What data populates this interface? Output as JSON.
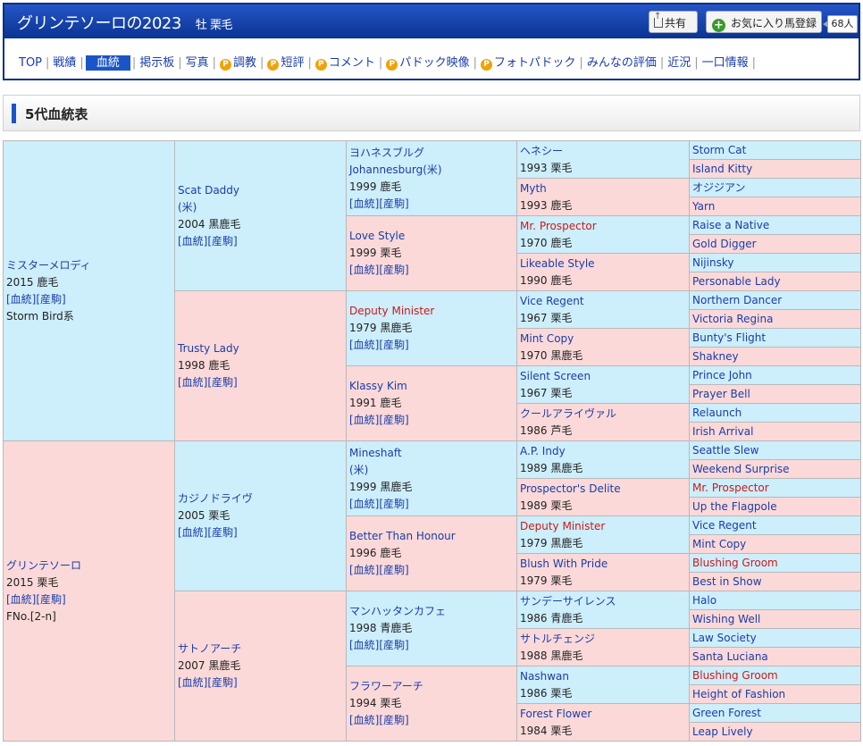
{
  "header": {
    "title": "グリンテソーロの2023",
    "subtitle": "牡 栗毛",
    "share_label": "共有",
    "fav_label": "お気に入り馬登録",
    "fav_count": "68人"
  },
  "nav": {
    "items": [
      "TOP",
      "戦績",
      "血統",
      "掲示板",
      "写真",
      "調教",
      "短評",
      "コメント",
      "パドック映像",
      "フォトパドック",
      "みんなの評価",
      "近況",
      "一口情報"
    ],
    "p_badge": "P"
  },
  "section_title": "5代血統表",
  "links": "[血統][産駒]",
  "sire": {
    "name": "ミスターメロディ",
    "info": "2015 鹿毛",
    "line": "Storm Bird系"
  },
  "dam": {
    "name": "グリンテソーロ",
    "info": "2015 栗毛",
    "line": "FNo.[2-n]"
  },
  "gen2": [
    {
      "name": "Scat Daddy",
      "name2": "(米)",
      "info": "2004 黒鹿毛"
    },
    {
      "name": "Trusty Lady",
      "info": "1998 鹿毛"
    },
    {
      "name": "カジノドライヴ",
      "info": "2005 栗毛"
    },
    {
      "name": "サトノアーチ",
      "info": "2007 黒鹿毛"
    }
  ],
  "gen3": [
    {
      "name": "ヨハネスブルグ",
      "name2": "Johannesburg(米)",
      "info": "1999 鹿毛"
    },
    {
      "name": "Love Style",
      "info": "1999 栗毛"
    },
    {
      "name": "Deputy Minister",
      "info": "1979 黒鹿毛"
    },
    {
      "name": "Klassy Kim",
      "info": "1991 鹿毛"
    },
    {
      "name": "Mineshaft",
      "name2": "(米)",
      "info": "1999 黒鹿毛"
    },
    {
      "name": "Better Than Honour",
      "info": "1996 鹿毛"
    },
    {
      "name": "マンハッタンカフェ",
      "info": "1998 青鹿毛"
    },
    {
      "name": "フラワーアーチ",
      "info": "1994 栗毛"
    }
  ],
  "gen4": [
    {
      "name": "ヘネシー",
      "info": "1993 栗毛"
    },
    {
      "name": "Myth",
      "info": "1993 鹿毛"
    },
    {
      "name": "Mr. Prospector",
      "info": "1970 鹿毛"
    },
    {
      "name": "Likeable Style",
      "info": "1990 鹿毛"
    },
    {
      "name": "Vice Regent",
      "info": "1967 栗毛"
    },
    {
      "name": "Mint Copy",
      "info": "1970 黒鹿毛"
    },
    {
      "name": "Silent Screen",
      "info": "1967 栗毛"
    },
    {
      "name": "クールアライヴァル",
      "info": "1986 芦毛"
    },
    {
      "name": "A.P. Indy",
      "info": "1989 黒鹿毛"
    },
    {
      "name": "Prospector's Delite",
      "info": "1989 栗毛"
    },
    {
      "name": "Deputy Minister",
      "info": "1979 黒鹿毛"
    },
    {
      "name": "Blush With Pride",
      "info": "1979 栗毛"
    },
    {
      "name": "サンデーサイレンス",
      "info": "1986 青鹿毛"
    },
    {
      "name": "サトルチェンジ",
      "info": "1988 黒鹿毛"
    },
    {
      "name": "Nashwan",
      "info": "1986 栗毛"
    },
    {
      "name": "Forest Flower",
      "info": "1984 栗毛"
    }
  ],
  "gen5": [
    "Storm Cat",
    "Island Kitty",
    "オジジアン",
    "Yarn",
    "Raise a Native",
    "Gold Digger",
    "Nijinsky",
    "Personable Lady",
    "Northern Dancer",
    "Victoria Regina",
    "Bunty's Flight",
    "Shakney",
    "Prince John",
    "Prayer Bell",
    "Relaunch",
    "Irish Arrival",
    "Seattle Slew",
    "Weekend Surprise",
    "Mr. Prospector",
    "Up the Flagpole",
    "Vice Regent",
    "Mint Copy",
    "Blushing Groom",
    "Best in Show",
    "Halo",
    "Wishing Well",
    "Law Society",
    "Santa Luciana",
    "Blushing Groom",
    "Height of Fashion",
    "Green Forest",
    "Leap Lively"
  ]
}
